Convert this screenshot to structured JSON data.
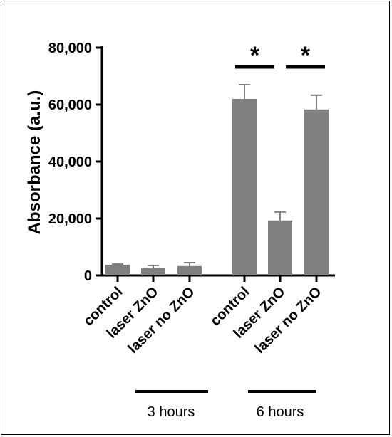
{
  "chart_data": {
    "type": "bar",
    "title": "",
    "xlabel": "",
    "ylabel": "Absorbance (a.u.)",
    "ylim": [
      0,
      80000
    ],
    "yticks": [
      0,
      20000,
      40000,
      60000,
      80000
    ],
    "ytick_labels": [
      "0",
      "20,000",
      "40,000",
      "60,000",
      "80,000"
    ],
    "categories": [
      "control",
      "laser ZnO",
      "laser no ZnO",
      "control",
      "laser ZnO",
      "laser no ZnO"
    ],
    "values": [
      3700,
      2600,
      3300,
      62000,
      19300,
      58300
    ],
    "errors": [
      300,
      900,
      1200,
      5000,
      3000,
      5000
    ],
    "bar_color": "#808080",
    "groups": [
      {
        "label": "3 hours",
        "indices": [
          0,
          1,
          2
        ]
      },
      {
        "label": "6 hours",
        "indices": [
          3,
          4,
          5
        ]
      }
    ],
    "significance": [
      {
        "from": 3,
        "to": 4,
        "label": "*"
      },
      {
        "from": 4,
        "to": 5,
        "label": "*"
      }
    ],
    "grid": false,
    "legend": "none"
  }
}
